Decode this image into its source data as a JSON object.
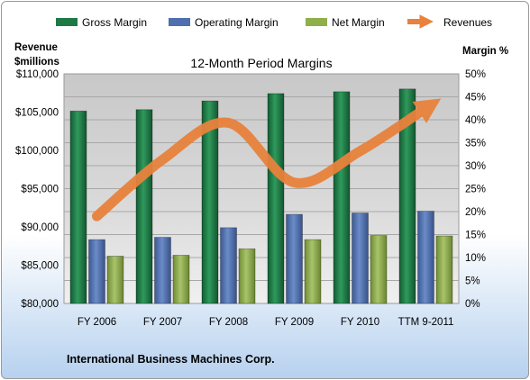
{
  "chart_data": {
    "type": "bar",
    "title": "12-Month Period Margins",
    "footer": "International Business Machines Corp.",
    "categories": [
      "FY 2006",
      "FY 2007",
      "FY 2008",
      "FY 2009",
      "FY 2010",
      "TTM 9-2011"
    ],
    "left_axis": {
      "label_line1": "Revenue",
      "label_line2": "$millions",
      "ylim": [
        80000,
        110000
      ],
      "ticks": [
        "$80,000",
        "$85,000",
        "$90,000",
        "$95,000",
        "$100,000",
        "$105,000",
        "$110,000"
      ]
    },
    "right_axis": {
      "label": "Margin %",
      "ylim": [
        0,
        50
      ],
      "ticks": [
        "0%",
        "5%",
        "10%",
        "15%",
        "20%",
        "25%",
        "30%",
        "35%",
        "40%",
        "45%",
        "50%"
      ]
    },
    "series": [
      {
        "name": "Gross Margin",
        "axis": "right",
        "kind": "bar",
        "color": "#1e7a45",
        "values": [
          41.9,
          42.2,
          44.1,
          45.7,
          46.1,
          46.7
        ]
      },
      {
        "name": "Operating Margin",
        "axis": "right",
        "kind": "bar",
        "color": "#4f6fae",
        "values": [
          13.9,
          14.4,
          16.5,
          19.4,
          19.7,
          20.1
        ]
      },
      {
        "name": "Net Margin",
        "axis": "right",
        "kind": "bar",
        "color": "#8fae4c",
        "values": [
          10.3,
          10.5,
          11.9,
          13.9,
          14.8,
          14.7
        ]
      },
      {
        "name": "Revenues",
        "axis": "left",
        "kind": "line",
        "color": "#e8823c",
        "values": [
          91400,
          98800,
          103600,
          95800,
          99900,
          105500
        ]
      }
    ],
    "grid": true,
    "legend_position": "top"
  }
}
